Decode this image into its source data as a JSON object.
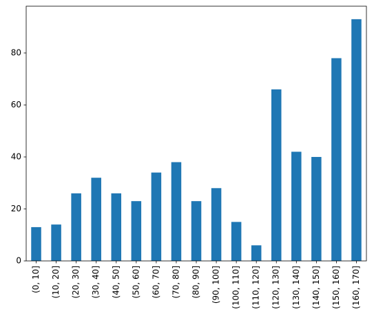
{
  "chart_data": {
    "type": "bar",
    "categories": [
      "(0, 10]",
      "(10, 20]",
      "(20, 30]",
      "(30, 40]",
      "(40, 50]",
      "(50, 60]",
      "(60, 70]",
      "(70, 80]",
      "(80, 90]",
      "(90, 100]",
      "(100, 110]",
      "(110, 120]",
      "(120, 130]",
      "(130, 140]",
      "(140, 150]",
      "(150, 160]",
      "(160, 170]"
    ],
    "values": [
      13,
      14,
      26,
      32,
      26,
      23,
      34,
      38,
      23,
      28,
      15,
      6,
      66,
      42,
      40,
      78,
      93
    ],
    "color": "#1f77b4",
    "ylim": [
      0,
      98
    ],
    "yticks": [
      0,
      20,
      40,
      60,
      80
    ],
    "grid": false
  }
}
